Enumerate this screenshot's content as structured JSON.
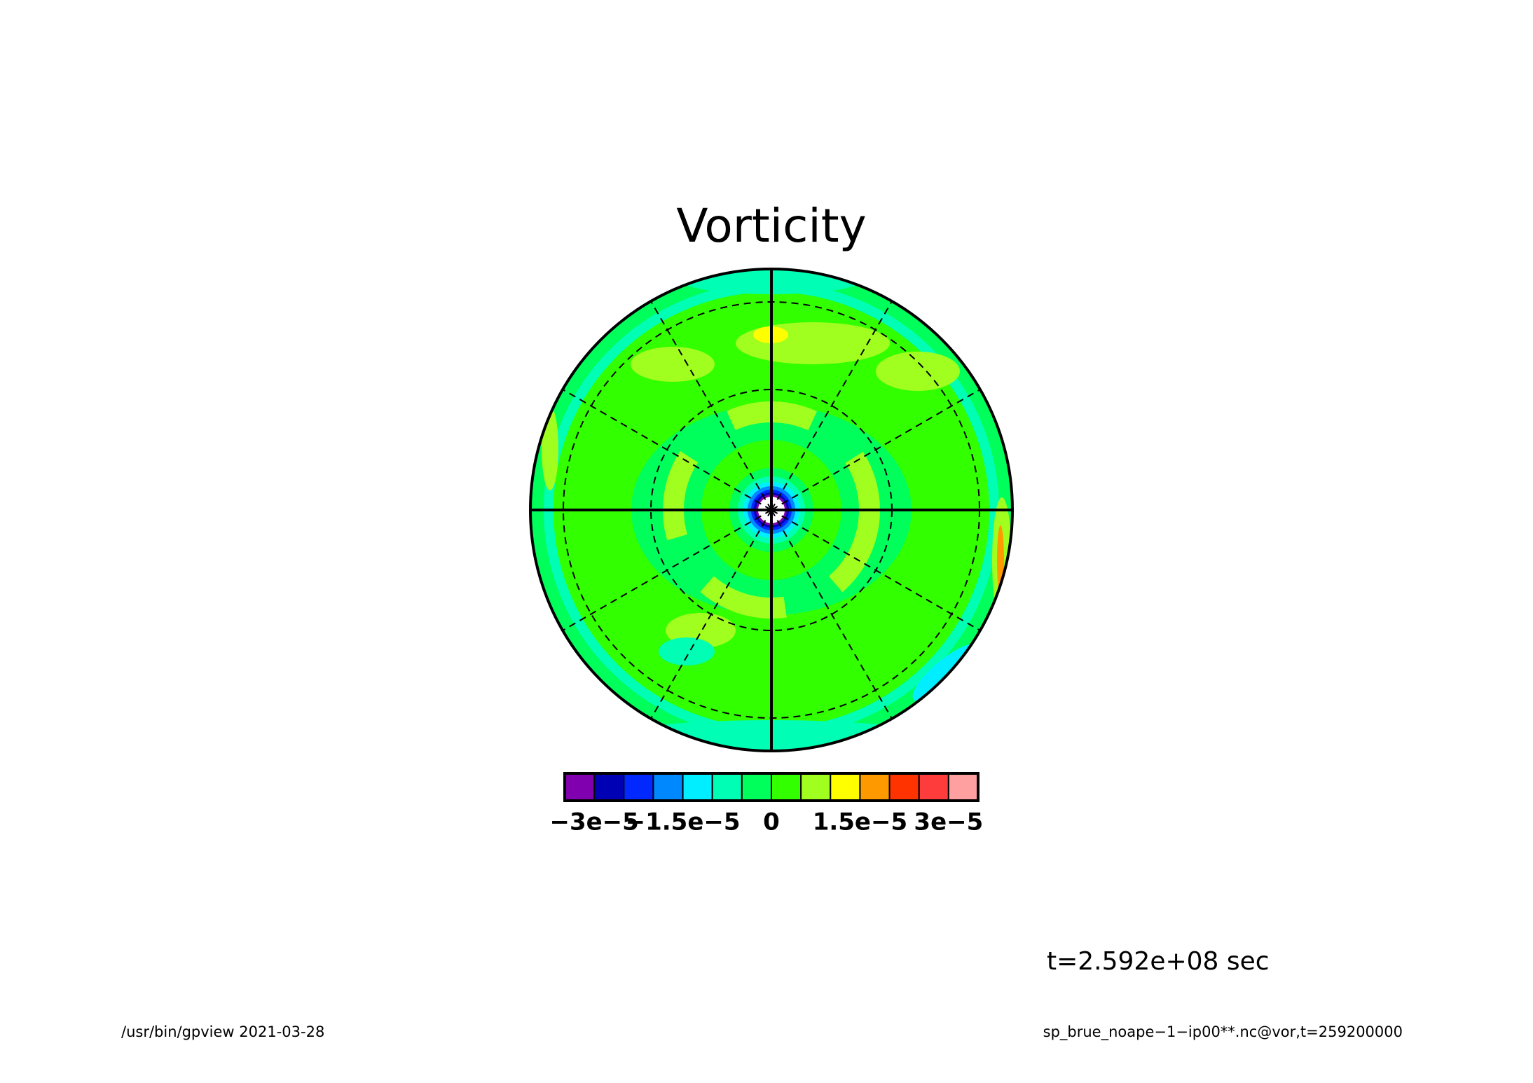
{
  "chart_data": {
    "type": "polar-contour",
    "title": "Vorticity",
    "colorbar": {
      "levels": [
        -3.5e-05,
        -3e-05,
        -2.5e-05,
        -2e-05,
        -1.5e-05,
        -1e-05,
        -5e-06,
        0,
        5e-06,
        1e-05,
        1.5e-05,
        2e-05,
        2.5e-05,
        3e-05,
        3.5e-05
      ],
      "colors": [
        "#8000b0",
        "#0000b4",
        "#0028ff",
        "#0088ff",
        "#00eeff",
        "#00ffb4",
        "#00ff5a",
        "#32ff00",
        "#a0ff1e",
        "#ffff00",
        "#ff9900",
        "#ff3300",
        "#ff3c3c",
        "#ffa0a0"
      ],
      "ticks": [
        {
          "value": -3e-05,
          "label": "−3e−5"
        },
        {
          "value": -1.5e-05,
          "label": "−1.5e−5"
        },
        0,
        {
          "value": 1.5e-05,
          "label": "1.5e−5"
        },
        {
          "value": 3e-05,
          "label": "3e−5"
        }
      ]
    },
    "time_label": "t=2.592e+08 sec",
    "footer_left": "/usr/bin/gpview  2021-03-28",
    "footer_right": "sp_brue_noape−1−ip00**.nc@vor,t=259200000"
  }
}
